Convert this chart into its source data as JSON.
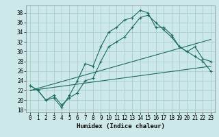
{
  "title": "",
  "xlabel": "Humidex (Indice chaleur)",
  "bg_color": "#cce8e8",
  "grid_color": "#aacccc",
  "line_color": "#1a6b5a",
  "xlim": [
    -0.5,
    23.5
  ],
  "ylim": [
    17.5,
    39.5
  ],
  "xticks": [
    0,
    1,
    2,
    3,
    4,
    5,
    6,
    7,
    8,
    9,
    10,
    11,
    12,
    13,
    14,
    15,
    16,
    17,
    18,
    19,
    20,
    21,
    22,
    23
  ],
  "yticks": [
    18,
    20,
    22,
    24,
    26,
    28,
    30,
    32,
    34,
    36,
    38
  ],
  "line1_x": [
    0,
    1,
    2,
    3,
    4,
    5,
    6,
    7,
    8,
    9,
    10,
    11,
    12,
    13,
    14,
    15,
    16,
    17,
    18,
    19,
    20,
    21,
    22,
    23
  ],
  "line1_y": [
    23,
    22,
    20,
    20.5,
    18.5,
    21,
    24,
    27.5,
    27,
    31,
    34,
    35,
    36.5,
    37,
    38.5,
    38,
    35,
    35,
    33.5,
    31,
    30,
    29,
    28,
    26
  ],
  "line2_x": [
    0,
    1,
    2,
    3,
    4,
    5,
    6,
    7,
    8,
    9,
    10,
    11,
    12,
    13,
    14,
    15,
    16,
    17,
    18,
    19,
    20,
    21,
    22,
    23
  ],
  "line2_y": [
    23,
    22,
    20,
    21,
    19,
    20.5,
    21.5,
    24,
    24.5,
    28,
    31,
    32,
    33,
    35,
    37,
    37.5,
    36,
    34.5,
    33,
    31,
    30,
    31,
    28.5,
    28
  ],
  "line3_x": [
    0,
    23
  ],
  "line3_y": [
    22,
    27
  ],
  "line4_x": [
    0,
    23
  ],
  "line4_y": [
    22,
    32.5
  ],
  "tick_fontsize": 5.5,
  "xlabel_fontsize": 6.5
}
